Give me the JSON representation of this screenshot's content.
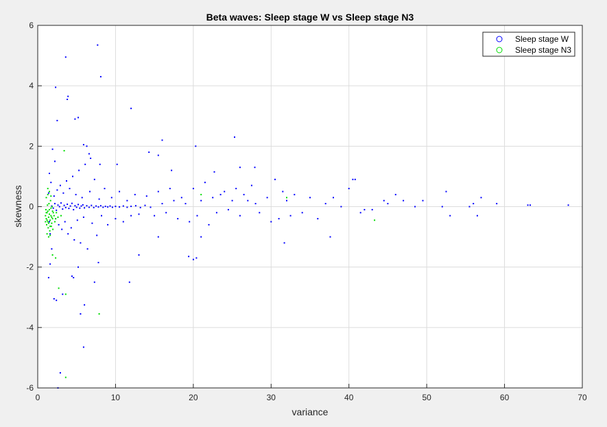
{
  "chart_data": {
    "type": "scatter",
    "title": "Beta waves: Sleep stage W vs Sleep stage N3",
    "xlabel": "variance",
    "ylabel": "skewness",
    "xlim": [
      0,
      70
    ],
    "ylim": [
      -6,
      6
    ],
    "xticks": [
      0,
      10,
      20,
      30,
      40,
      50,
      60,
      70
    ],
    "yticks": [
      -6,
      -4,
      -2,
      0,
      2,
      4,
      6
    ],
    "xtick_labels": [
      "0",
      "10",
      "20",
      "30",
      "40",
      "50",
      "60",
      "70"
    ],
    "ytick_labels": [
      "-6",
      "-4",
      "-2",
      "0",
      "2",
      "4",
      "6"
    ],
    "grid": true,
    "legend_position": "top-right",
    "series": [
      {
        "name": "Sleep stage W",
        "color": "#0000ff",
        "marker": "point",
        "points": [
          [
            1.8,
            0.02
          ],
          [
            2.0,
            -0.05
          ],
          [
            2.2,
            0.1
          ],
          [
            2.4,
            -0.12
          ],
          [
            2.6,
            0.05
          ],
          [
            2.8,
            0.0
          ],
          [
            3.0,
            0.12
          ],
          [
            3.2,
            -0.08
          ],
          [
            3.4,
            0.04
          ],
          [
            3.6,
            -0.03
          ],
          [
            3.8,
            0.08
          ],
          [
            4.0,
            -0.06
          ],
          [
            4.2,
            0.02
          ],
          [
            4.4,
            0.11
          ],
          [
            4.6,
            -0.1
          ],
          [
            4.8,
            0.03
          ],
          [
            5.0,
            -0.02
          ],
          [
            5.2,
            0.07
          ],
          [
            5.4,
            -0.05
          ],
          [
            5.6,
            0.02
          ],
          [
            5.8,
            0.06
          ],
          [
            6.0,
            -0.04
          ],
          [
            6.3,
            0.03
          ],
          [
            6.6,
            -0.02
          ],
          [
            6.9,
            0.04
          ],
          [
            7.2,
            -0.03
          ],
          [
            7.5,
            0.02
          ],
          [
            7.8,
            -0.01
          ],
          [
            8.1,
            0.03
          ],
          [
            8.4,
            -0.02
          ],
          [
            8.7,
            0.01
          ],
          [
            9.0,
            -0.01
          ],
          [
            9.3,
            0.02
          ],
          [
            9.6,
            -0.02
          ],
          [
            10.0,
            0.01
          ],
          [
            10.5,
            -0.01
          ],
          [
            11.0,
            0.02
          ],
          [
            11.5,
            -0.02
          ],
          [
            12.0,
            0.01
          ],
          [
            12.6,
            0.03
          ],
          [
            13.2,
            -0.03
          ],
          [
            13.8,
            0.04
          ],
          [
            14.5,
            -0.02
          ],
          [
            2.1,
            0.35
          ],
          [
            2.3,
            -0.4
          ],
          [
            2.5,
            0.55
          ],
          [
            2.7,
            -0.6
          ],
          [
            2.9,
            0.7
          ],
          [
            3.1,
            -0.75
          ],
          [
            3.3,
            0.45
          ],
          [
            3.5,
            -0.5
          ],
          [
            3.7,
            0.85
          ],
          [
            3.9,
            -0.9
          ],
          [
            4.1,
            0.6
          ],
          [
            4.3,
            -0.7
          ],
          [
            4.5,
            1.0
          ],
          [
            4.7,
            -1.1
          ],
          [
            4.9,
            0.4
          ],
          [
            5.1,
            -0.45
          ],
          [
            5.3,
            1.2
          ],
          [
            5.5,
            -1.2
          ],
          [
            5.7,
            0.3
          ],
          [
            5.9,
            -0.35
          ],
          [
            6.1,
            1.4
          ],
          [
            6.4,
            -1.4
          ],
          [
            6.7,
            0.5
          ],
          [
            7.0,
            -0.55
          ],
          [
            7.3,
            0.9
          ],
          [
            7.6,
            -0.95
          ],
          [
            7.9,
            0.25
          ],
          [
            8.2,
            -0.3
          ],
          [
            8.6,
            0.6
          ],
          [
            9.0,
            -0.6
          ],
          [
            9.5,
            0.3
          ],
          [
            10.0,
            -0.4
          ],
          [
            10.5,
            0.5
          ],
          [
            11.0,
            -0.5
          ],
          [
            11.5,
            0.2
          ],
          [
            12.0,
            -0.3
          ],
          [
            12.5,
            0.4
          ],
          [
            13.0,
            -0.25
          ],
          [
            14.0,
            0.35
          ],
          [
            15.0,
            -0.3
          ],
          [
            15.5,
            0.5
          ],
          [
            16.0,
            0.1
          ],
          [
            16.5,
            -0.2
          ],
          [
            17.0,
            0.6
          ],
          [
            17.5,
            0.2
          ],
          [
            18.0,
            -0.4
          ],
          [
            18.5,
            0.3
          ],
          [
            19.0,
            0.1
          ],
          [
            19.5,
            -0.5
          ],
          [
            20.0,
            0.6
          ],
          [
            20.5,
            -0.3
          ],
          [
            21.0,
            0.2
          ],
          [
            21.5,
            0.8
          ],
          [
            22.0,
            -0.6
          ],
          [
            22.5,
            0.3
          ],
          [
            23.0,
            -0.2
          ],
          [
            23.5,
            0.4
          ],
          [
            24.0,
            0.5
          ],
          [
            24.5,
            -0.1
          ],
          [
            25.0,
            0.2
          ],
          [
            25.5,
            0.6
          ],
          [
            26.0,
            -0.3
          ],
          [
            26.5,
            0.4
          ],
          [
            27.0,
            0.2
          ],
          [
            27.5,
            0.7
          ],
          [
            28.0,
            0.1
          ],
          [
            28.5,
            -0.2
          ],
          [
            29.5,
            0.3
          ],
          [
            30.0,
            -0.5
          ],
          [
            30.5,
            0.9
          ],
          [
            31.0,
            -0.4
          ],
          [
            31.5,
            0.5
          ],
          [
            32.0,
            0.2
          ],
          [
            32.5,
            -0.3
          ],
          [
            33.0,
            0.4
          ],
          [
            34.0,
            -0.2
          ],
          [
            35.0,
            0.3
          ],
          [
            36.0,
            -0.4
          ],
          [
            37.0,
            0.1
          ],
          [
            38.0,
            0.3
          ],
          [
            39.0,
            0.0
          ],
          [
            40.0,
            0.6
          ],
          [
            40.5,
            0.9
          ],
          [
            41.5,
            -0.2
          ],
          [
            42.0,
            -0.1
          ],
          [
            43.0,
            -0.1
          ],
          [
            44.5,
            0.2
          ],
          [
            45.0,
            0.1
          ],
          [
            46.0,
            0.4
          ],
          [
            47.0,
            0.2
          ],
          [
            48.5,
            0.0
          ],
          [
            49.5,
            0.2
          ],
          [
            52.0,
            0.0
          ],
          [
            52.5,
            0.5
          ],
          [
            53.0,
            -0.3
          ],
          [
            55.5,
            0.0
          ],
          [
            56.0,
            0.1
          ],
          [
            56.5,
            -0.3
          ],
          [
            57.0,
            0.3
          ],
          [
            59.0,
            0.1
          ],
          [
            63.0,
            0.05
          ],
          [
            63.3,
            0.05
          ],
          [
            68.2,
            0.05
          ],
          [
            2.3,
            3.95
          ],
          [
            3.6,
            4.95
          ],
          [
            3.8,
            3.55
          ],
          [
            3.9,
            3.65
          ],
          [
            7.7,
            5.35
          ],
          [
            8.1,
            4.3
          ],
          [
            12.0,
            3.25
          ],
          [
            4.8,
            2.9
          ],
          [
            5.2,
            2.95
          ],
          [
            2.5,
            2.85
          ],
          [
            5.9,
            2.05
          ],
          [
            6.3,
            2.0
          ],
          [
            16.0,
            2.2
          ],
          [
            14.3,
            1.8
          ],
          [
            15.5,
            1.7
          ],
          [
            20.3,
            2.0
          ],
          [
            25.3,
            2.3
          ],
          [
            6.6,
            1.75
          ],
          [
            6.8,
            1.6
          ],
          [
            8.0,
            1.4
          ],
          [
            10.2,
            1.4
          ],
          [
            17.2,
            1.2
          ],
          [
            22.7,
            1.15
          ],
          [
            26.0,
            1.3
          ],
          [
            27.9,
            1.3
          ],
          [
            40.8,
            0.9
          ],
          [
            2.1,
            -3.05
          ],
          [
            2.4,
            -3.1
          ],
          [
            3.2,
            -2.9
          ],
          [
            4.6,
            -2.35
          ],
          [
            5.2,
            -2.0
          ],
          [
            6.0,
            -3.25
          ],
          [
            5.5,
            -3.55
          ],
          [
            5.9,
            -4.65
          ],
          [
            7.3,
            -2.5
          ],
          [
            11.8,
            -2.5
          ],
          [
            2.9,
            -5.5
          ],
          [
            20.4,
            -1.7
          ],
          [
            19.4,
            -1.65
          ],
          [
            20.0,
            -1.75
          ],
          [
            21.0,
            -1.0
          ],
          [
            31.7,
            -1.2
          ],
          [
            37.6,
            -1.0
          ],
          [
            15.5,
            -1.0
          ],
          [
            13.0,
            -1.6
          ],
          [
            1.4,
            -2.35
          ],
          [
            1.6,
            -1.9
          ],
          [
            7.8,
            -1.85
          ],
          [
            4.4,
            -2.3
          ],
          [
            2.6,
            -6.0
          ],
          [
            1.9,
            1.9
          ],
          [
            2.2,
            1.5
          ],
          [
            1.5,
            1.1
          ],
          [
            1.7,
            0.8
          ],
          [
            1.6,
            -0.9
          ],
          [
            1.8,
            -1.4
          ],
          [
            1.4,
            0.45
          ],
          [
            1.5,
            -0.5
          ]
        ]
      },
      {
        "name": "Sleep stage N3",
        "color": "#00dd00",
        "marker": "point",
        "points": [
          [
            1.0,
            -0.3
          ],
          [
            1.1,
            -0.4
          ],
          [
            1.2,
            -0.2
          ],
          [
            1.3,
            -0.5
          ],
          [
            1.4,
            -0.35
          ],
          [
            1.5,
            -0.25
          ],
          [
            1.6,
            -0.45
          ],
          [
            1.7,
            -0.3
          ],
          [
            1.8,
            -0.55
          ],
          [
            1.9,
            -0.4
          ],
          [
            2.0,
            -0.2
          ],
          [
            1.05,
            -0.1
          ],
          [
            1.15,
            -0.6
          ],
          [
            1.25,
            0.05
          ],
          [
            1.35,
            -0.7
          ],
          [
            1.45,
            0.1
          ],
          [
            1.55,
            -0.8
          ],
          [
            1.65,
            0.2
          ],
          [
            1.75,
            -0.65
          ],
          [
            1.85,
            0.0
          ],
          [
            1.95,
            -0.75
          ],
          [
            1.1,
            0.3
          ],
          [
            1.3,
            0.4
          ],
          [
            1.5,
            0.5
          ],
          [
            1.2,
            -0.9
          ],
          [
            1.4,
            -1.0
          ],
          [
            1.6,
            -0.95
          ],
          [
            1.0,
            -0.5
          ],
          [
            1.1,
            -0.2
          ],
          [
            1.2,
            -0.45
          ],
          [
            1.3,
            -0.15
          ],
          [
            1.4,
            -0.55
          ],
          [
            1.5,
            -0.1
          ],
          [
            1.6,
            -0.65
          ],
          [
            1.7,
            -0.05
          ],
          [
            1.8,
            -0.35
          ],
          [
            1.9,
            -0.15
          ],
          [
            2.1,
            -0.3
          ],
          [
            2.2,
            -0.5
          ],
          [
            2.3,
            -0.4
          ],
          [
            2.4,
            -0.2
          ],
          [
            2.6,
            -0.35
          ],
          [
            3.0,
            -0.3
          ],
          [
            1.9,
            -1.6
          ],
          [
            2.3,
            -1.7
          ],
          [
            3.4,
            1.85
          ],
          [
            3.6,
            -2.9
          ],
          [
            2.7,
            -2.7
          ],
          [
            7.9,
            -3.55
          ],
          [
            3.6,
            -5.65
          ],
          [
            21.0,
            0.4
          ],
          [
            32.0,
            0.3
          ],
          [
            43.3,
            -0.45
          ],
          [
            1.3,
            0.6
          ],
          [
            1.7,
            0.35
          ]
        ]
      }
    ]
  }
}
